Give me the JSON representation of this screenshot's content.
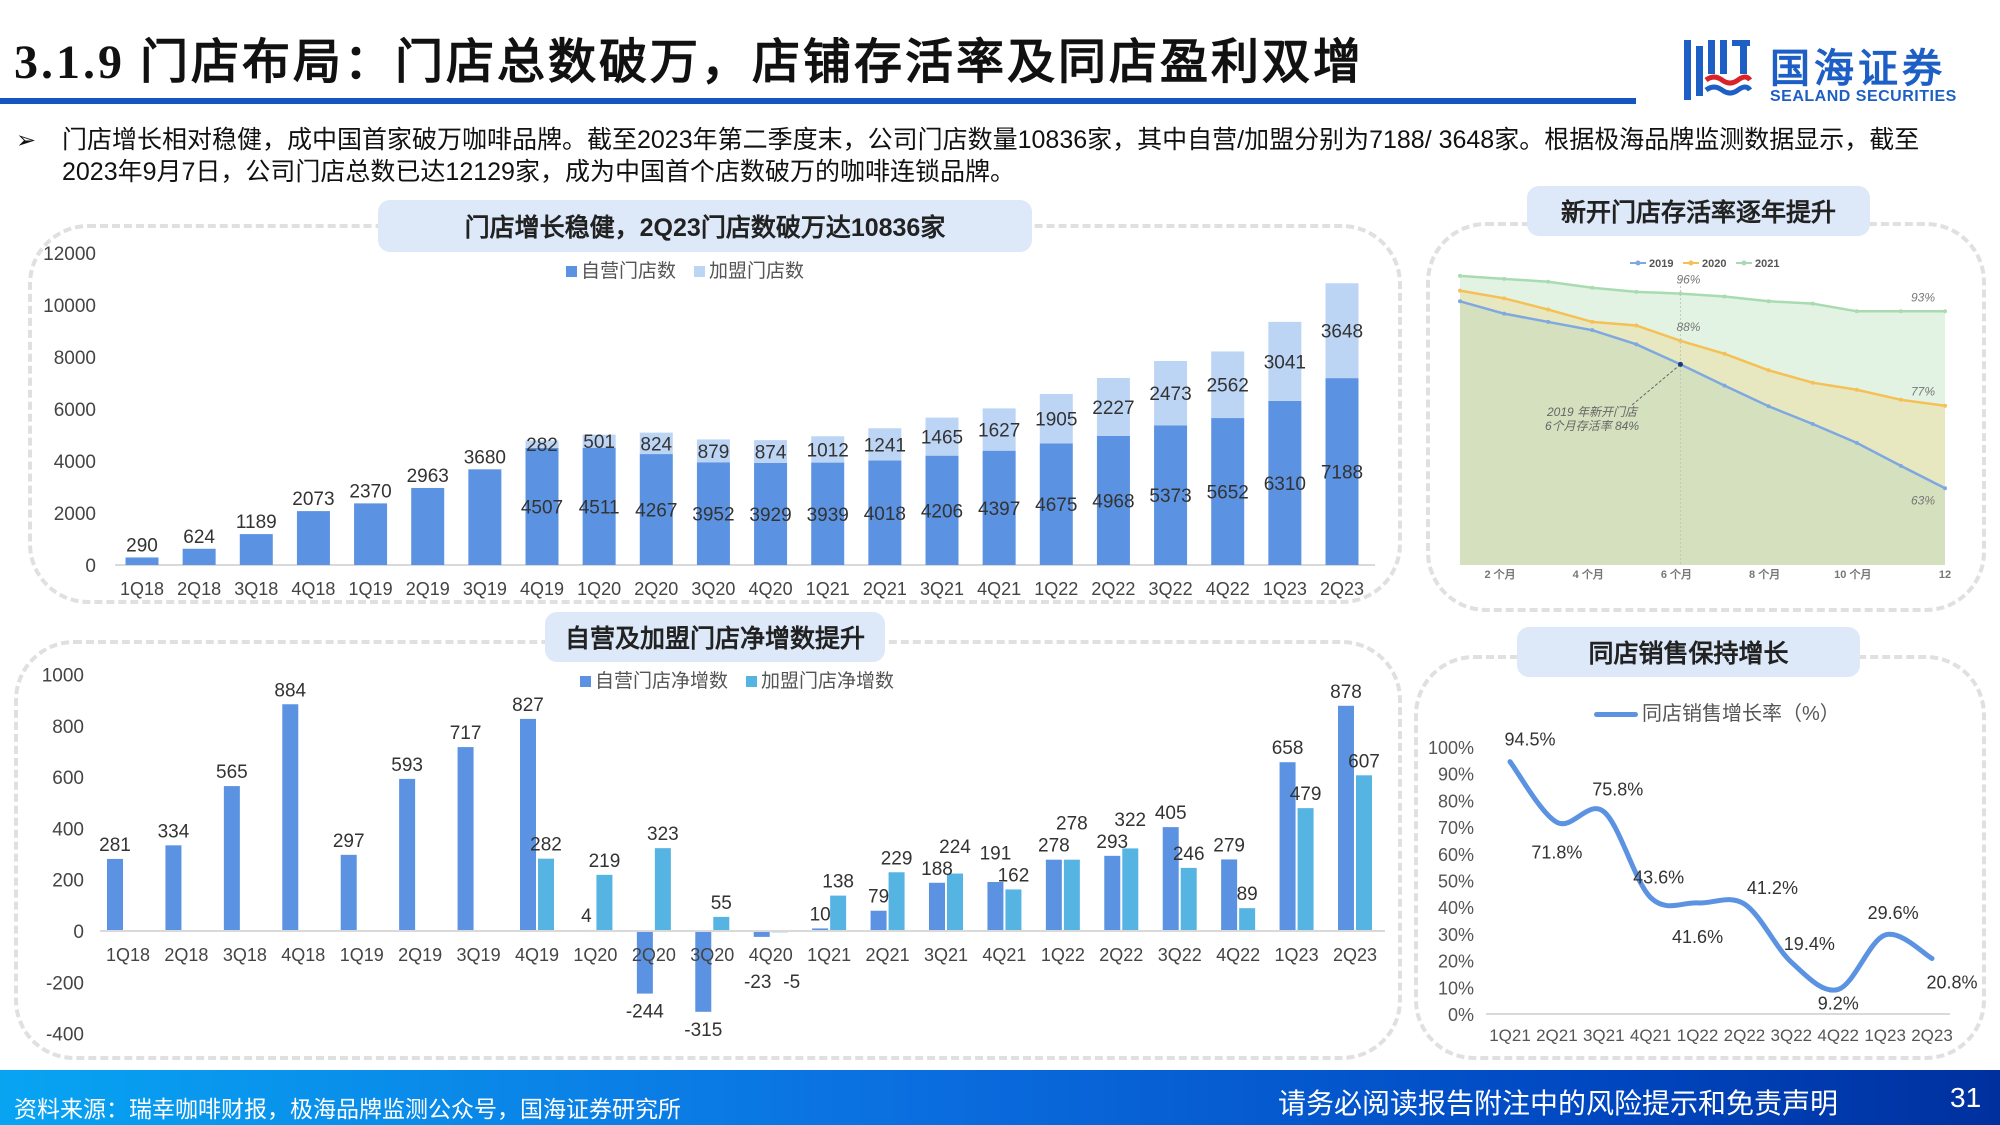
{
  "header": {
    "title": "3.1.9 门店布局：门店总数破万，店铺存活率及同店盈利双增",
    "logo_cn": "国海证券",
    "logo_en": "SEALAND SECURITIES"
  },
  "bullet": {
    "marker": "➢",
    "text": "门店增长相对稳健，成中国首家破万咖啡品牌。截至2023年第二季度末，公司门店数量10836家，其中自营/加盟分别为7188/ 3648家。根据极海品牌监测数据显示，截至2023年9月7日，公司门店总数已达12129家，成为中国首个店数破万的咖啡连锁品牌。"
  },
  "colors": {
    "self": "#5b93e2",
    "franchise": "#bdd5f5",
    "franchise_net": "#56b4e3",
    "line": "#5b93e2",
    "s2019": "#7ea8e0",
    "s2020": "#f5c055",
    "s2021": "#a8dcb0"
  },
  "chart_data": [
    {
      "type": "bar",
      "stacked": true,
      "title": "门店增长稳健，2Q23门店数破万达10836家",
      "categories": [
        "1Q18",
        "2Q18",
        "3Q18",
        "4Q18",
        "1Q19",
        "2Q19",
        "3Q19",
        "4Q19",
        "1Q20",
        "2Q20",
        "3Q20",
        "4Q20",
        "1Q21",
        "2Q21",
        "3Q21",
        "4Q21",
        "1Q22",
        "2Q22",
        "3Q22",
        "4Q22",
        "1Q23",
        "2Q23"
      ],
      "series": [
        {
          "name": "自营门店数",
          "values": [
            290,
            624,
            1189,
            2073,
            2370,
            2963,
            3680,
            4507,
            4511,
            4267,
            3952,
            3929,
            3939,
            4018,
            4206,
            4397,
            4675,
            4968,
            5373,
            5652,
            6310,
            7188
          ]
        },
        {
          "name": "加盟门店数",
          "values": [
            null,
            null,
            null,
            null,
            null,
            null,
            null,
            282,
            501,
            824,
            879,
            874,
            1012,
            1241,
            1465,
            1627,
            1905,
            2227,
            2473,
            2562,
            3041,
            3648
          ]
        }
      ],
      "yticks": [
        "0",
        "2000",
        "4000",
        "6000",
        "8000",
        "10000",
        "12000"
      ],
      "ylim": [
        0,
        12000
      ],
      "legend": "top"
    },
    {
      "type": "bar",
      "title": "自营及加盟门店净增数提升",
      "categories": [
        "1Q18",
        "2Q18",
        "3Q18",
        "4Q18",
        "1Q19",
        "2Q19",
        "3Q19",
        "4Q19",
        "1Q20",
        "2Q20",
        "3Q20",
        "4Q20",
        "1Q21",
        "2Q21",
        "3Q21",
        "4Q21",
        "1Q22",
        "2Q22",
        "3Q22",
        "4Q22",
        "1Q23",
        "2Q23"
      ],
      "series": [
        {
          "name": "自营门店净增数",
          "values": [
            281,
            334,
            565,
            884,
            297,
            593,
            717,
            827,
            4,
            -244,
            -315,
            -23,
            10,
            79,
            188,
            191,
            278,
            293,
            405,
            279,
            658,
            878
          ]
        },
        {
          "name": "加盟门店净增数",
          "values": [
            null,
            null,
            null,
            null,
            null,
            null,
            null,
            282,
            219,
            323,
            55,
            -5,
            138,
            229,
            224,
            162,
            278,
            322,
            246,
            89,
            479,
            607
          ]
        }
      ],
      "yticks": [
        "-400",
        "-200",
        "0",
        "200",
        "400",
        "600",
        "800",
        "1000"
      ],
      "ylim": [
        -400,
        1000
      ],
      "legend": "top"
    },
    {
      "type": "area",
      "title": "新开门店存活率逐年提升",
      "x": [
        1,
        2,
        3,
        4,
        5,
        6,
        7,
        8,
        9,
        10,
        11,
        12
      ],
      "xticks": [
        {
          "at": 2,
          "label": "2 个月"
        },
        {
          "at": 4,
          "label": "4 个月"
        },
        {
          "at": 6,
          "label": "6 个月"
        },
        {
          "at": 8,
          "label": "8 个月"
        },
        {
          "at": 10,
          "label": "10 个月"
        },
        {
          "at": 12,
          "label": "12"
        }
      ],
      "series": [
        {
          "name": "2021",
          "values": [
            99,
            98.5,
            98,
            97,
            96.3,
            96,
            95.5,
            94.7,
            94.3,
            93,
            93,
            93
          ]
        },
        {
          "name": "2020",
          "values": [
            96.5,
            95.2,
            93.3,
            91.2,
            90.6,
            88,
            85.8,
            83,
            80.9,
            79.7,
            78,
            77
          ]
        },
        {
          "name": "2019",
          "values": [
            94.7,
            92.6,
            91.2,
            89.8,
            87.4,
            84,
            80.4,
            76.9,
            73.9,
            70.7,
            66.8,
            63
          ]
        }
      ],
      "annotations": [
        {
          "text": "96%",
          "x": 6,
          "series": "2021"
        },
        {
          "text": "93%",
          "x": 12,
          "series": "2021"
        },
        {
          "text": "88%",
          "x": 6,
          "series": "2020"
        },
        {
          "text": "77%",
          "x": 12,
          "series": "2020"
        },
        {
          "text": "63%",
          "x": 12,
          "series": "2019"
        }
      ],
      "callout": [
        "2019 年新开门店",
        "6个月存活率  84%"
      ],
      "ylim": [
        50,
        100
      ],
      "legend": "top"
    },
    {
      "type": "line",
      "title": "同店销售保持增长",
      "categories": [
        "1Q21",
        "2Q21",
        "3Q21",
        "4Q21",
        "1Q22",
        "2Q22",
        "3Q22",
        "4Q22",
        "1Q23",
        "2Q23"
      ],
      "series": [
        {
          "name": "同店销售增长率（%）",
          "values": [
            94.5,
            71.8,
            75.8,
            43.6,
            41.6,
            41.2,
            19.4,
            9.2,
            29.6,
            20.8
          ]
        }
      ],
      "labels": [
        "94.5%",
        "71.8%",
        "75.8%",
        "43.6%",
        "41.6%",
        "41.2%",
        "19.4%",
        "9.2%",
        "29.6%",
        "20.8%"
      ],
      "yticks": [
        "0%",
        "10%",
        "20%",
        "30%",
        "40%",
        "50%",
        "60%",
        "70%",
        "80%",
        "90%",
        "100%"
      ],
      "ylim": [
        0,
        100
      ],
      "legend": "top"
    }
  ],
  "footer": {
    "source": "资料来源：瑞幸咖啡财报，极海品牌监测公众号，国海证券研究所",
    "disclaimer": "请务必阅读报告附注中的风险提示和免责声明",
    "page": "31"
  }
}
